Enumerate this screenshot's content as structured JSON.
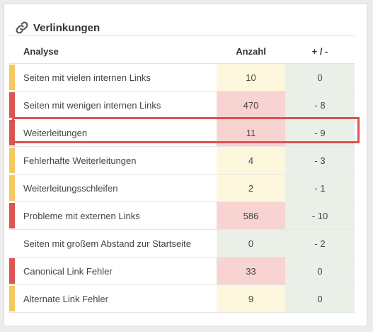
{
  "widget": {
    "title": "Verlinkungen",
    "icon": "link-icon"
  },
  "table": {
    "headers": {
      "analysis": "Analyse",
      "count": "Anzahl",
      "delta": "+ / -"
    },
    "rows": [
      {
        "label": "Seiten mit vielen internen Links",
        "count": "10",
        "delta": "0",
        "severity": "warning",
        "severity_color": "#f5c860",
        "count_bg": "#fdf8dd",
        "delta_bg": "#eaf0e8"
      },
      {
        "label": "Seiten mit wenigen internen Links",
        "count": "470",
        "delta": "- 8",
        "severity": "error",
        "severity_color": "#dc5553",
        "count_bg": "#f7d3d2",
        "delta_bg": "#eaf0e8"
      },
      {
        "label": "Weiterleitungen",
        "count": "11",
        "delta": "- 9",
        "severity": "error",
        "severity_color": "#dc5553",
        "count_bg": "#f7d3d2",
        "delta_bg": "#eaf0e8"
      },
      {
        "label": "Fehlerhafte Weiterleitungen",
        "count": "4",
        "delta": "- 3",
        "severity": "warning",
        "severity_color": "#f5c860",
        "count_bg": "#fdf8dd",
        "delta_bg": "#eaf0e8"
      },
      {
        "label": "Weiterleitungsschleifen",
        "count": "2",
        "delta": "- 1",
        "severity": "warning",
        "severity_color": "#f5c860",
        "count_bg": "#fdf8dd",
        "delta_bg": "#eaf0e8"
      },
      {
        "label": "Probleme mit externen Links",
        "count": "586",
        "delta": "- 10",
        "severity": "error",
        "severity_color": "#dc5553",
        "count_bg": "#f7d3d2",
        "delta_bg": "#eaf0e8"
      },
      {
        "label": "Seiten mit großem Abstand zur Startseite",
        "count": "0",
        "delta": "- 2",
        "severity": "none",
        "severity_color": "#ffffff",
        "count_bg": "#eaf0e8",
        "delta_bg": "#eaf0e8"
      },
      {
        "label": "Canonical Link Fehler",
        "count": "33",
        "delta": "0",
        "severity": "error",
        "severity_color": "#dc5553",
        "count_bg": "#f7d3d2",
        "delta_bg": "#eaf0e8"
      },
      {
        "label": "Alternate Link Fehler",
        "count": "9",
        "delta": "0",
        "severity": "warning",
        "severity_color": "#f5c860",
        "count_bg": "#fdf8dd",
        "delta_bg": "#eaf0e8"
      }
    ]
  },
  "highlighted_row": "Weiterleitungen",
  "highlight_color": "#d9534f"
}
